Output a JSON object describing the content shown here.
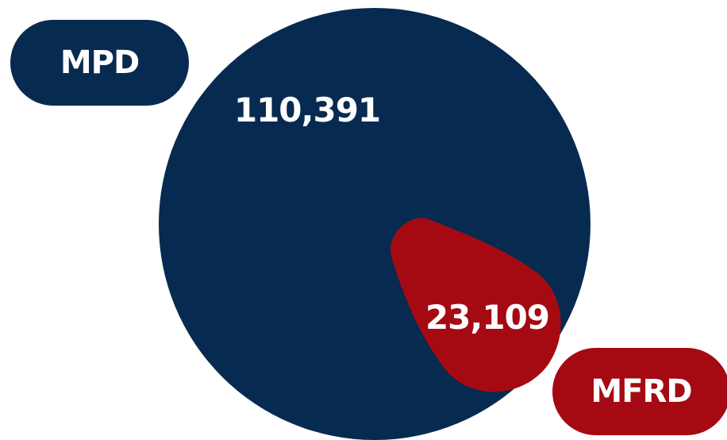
{
  "chart_data": {
    "type": "pie",
    "title": "",
    "categories": [
      "MPD",
      "MFRD"
    ],
    "values": [
      110391,
      23109
    ],
    "value_labels": [
      "110,391",
      "23,109"
    ],
    "legend": [
      "MPD",
      "MFRD"
    ],
    "legend_placement": "outside, top-left and bottom-right pills",
    "colors": [
      "#072a50",
      "#a50a13"
    ]
  }
}
